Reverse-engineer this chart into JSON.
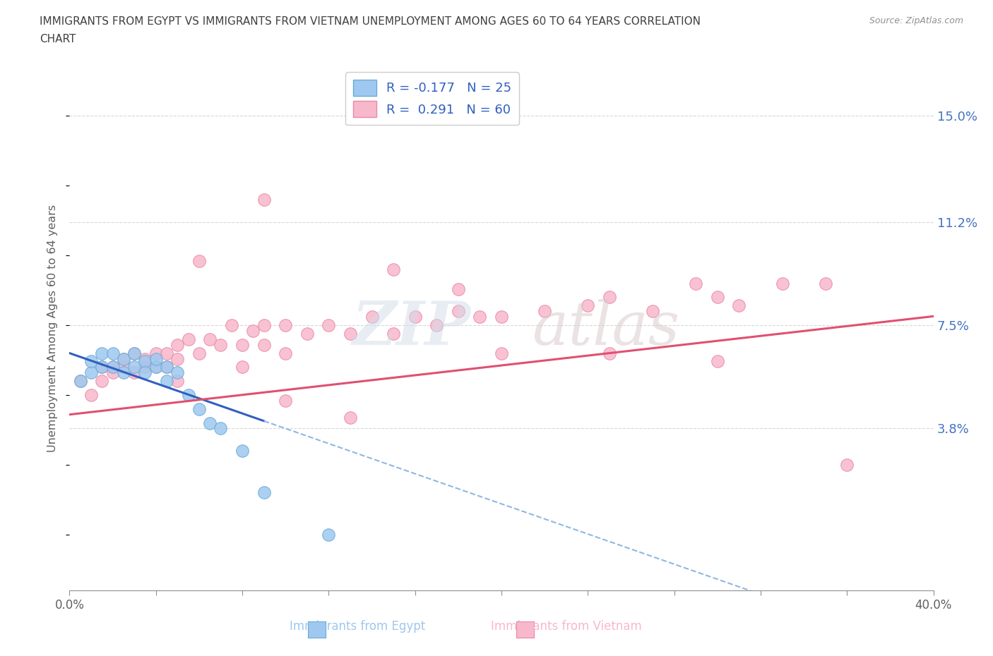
{
  "title": "IMMIGRANTS FROM EGYPT VS IMMIGRANTS FROM VIETNAM UNEMPLOYMENT AMONG AGES 60 TO 64 YEARS CORRELATION\nCHART",
  "source_text": "Source: ZipAtlas.com",
  "ylabel": "Unemployment Among Ages 60 to 64 years",
  "xlim": [
    0.0,
    0.4
  ],
  "ylim": [
    -0.02,
    0.168
  ],
  "right_yticks": [
    0.038,
    0.075,
    0.112,
    0.15
  ],
  "right_yticklabels": [
    "3.8%",
    "7.5%",
    "11.2%",
    "15.0%"
  ],
  "watermark_zip": "ZIP",
  "watermark_atlas": "atlas",
  "egypt_color": "#9ec8ef",
  "egypt_edge": "#6aaad8",
  "egypt_trendline_color": "#3060c0",
  "egypt_trendline_dash_color": "#90b8e0",
  "vietnam_color": "#f8b8cc",
  "vietnam_edge": "#e888a8",
  "vietnam_trendline_color": "#e05070",
  "egypt_x": [
    0.005,
    0.01,
    0.01,
    0.015,
    0.015,
    0.02,
    0.02,
    0.025,
    0.025,
    0.03,
    0.03,
    0.035,
    0.035,
    0.04,
    0.04,
    0.045,
    0.045,
    0.05,
    0.055,
    0.06,
    0.065,
    0.07,
    0.08,
    0.09,
    0.12
  ],
  "egypt_y": [
    0.055,
    0.058,
    0.062,
    0.06,
    0.065,
    0.06,
    0.065,
    0.058,
    0.063,
    0.06,
    0.065,
    0.062,
    0.058,
    0.06,
    0.063,
    0.055,
    0.06,
    0.058,
    0.05,
    0.045,
    0.04,
    0.038,
    0.03,
    0.015,
    0.0
  ],
  "vietnam_x": [
    0.005,
    0.01,
    0.015,
    0.015,
    0.02,
    0.02,
    0.025,
    0.025,
    0.03,
    0.03,
    0.035,
    0.035,
    0.04,
    0.04,
    0.045,
    0.045,
    0.05,
    0.05,
    0.055,
    0.06,
    0.065,
    0.07,
    0.075,
    0.08,
    0.085,
    0.09,
    0.09,
    0.1,
    0.1,
    0.11,
    0.12,
    0.13,
    0.14,
    0.15,
    0.16,
    0.17,
    0.18,
    0.19,
    0.2,
    0.22,
    0.24,
    0.25,
    0.27,
    0.29,
    0.3,
    0.31,
    0.33,
    0.35,
    0.15,
    0.18,
    0.09,
    0.06,
    0.05,
    0.08,
    0.1,
    0.13,
    0.2,
    0.25,
    0.3,
    0.36
  ],
  "vietnam_y": [
    0.055,
    0.05,
    0.06,
    0.055,
    0.06,
    0.058,
    0.06,
    0.063,
    0.058,
    0.065,
    0.06,
    0.063,
    0.065,
    0.06,
    0.065,
    0.06,
    0.068,
    0.063,
    0.07,
    0.065,
    0.07,
    0.068,
    0.075,
    0.068,
    0.073,
    0.075,
    0.068,
    0.075,
    0.065,
    0.072,
    0.075,
    0.072,
    0.078,
    0.072,
    0.078,
    0.075,
    0.08,
    0.078,
    0.078,
    0.08,
    0.082,
    0.085,
    0.08,
    0.09,
    0.085,
    0.082,
    0.09,
    0.09,
    0.095,
    0.088,
    0.12,
    0.098,
    0.055,
    0.06,
    0.048,
    0.042,
    0.065,
    0.065,
    0.062,
    0.025
  ],
  "background_color": "#ffffff",
  "grid_color": "#d8d8d8",
  "title_color": "#404040",
  "axis_label_color": "#606060",
  "tick_color": "#909090"
}
